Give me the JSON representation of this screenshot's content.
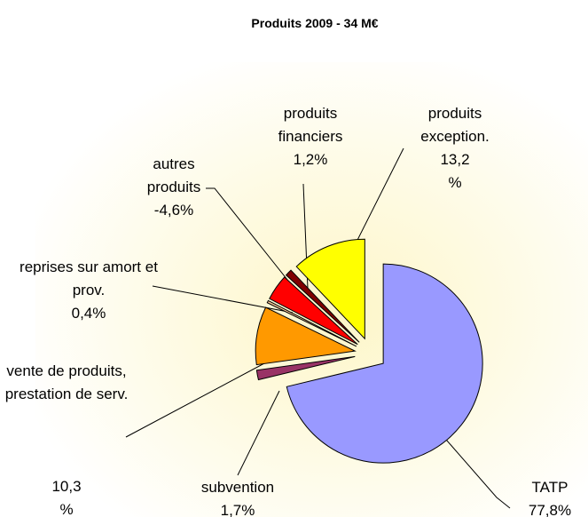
{
  "chart_data": {
    "type": "pie",
    "title": "Produits 2009 -  34 M€",
    "categories": [
      "TATP",
      "subvention",
      "vente de produits, prestation de serv.",
      "reprises sur amort et prov.",
      "autres produits",
      "produits financiers",
      "produits exception."
    ],
    "values": [
      77.8,
      1.7,
      10.3,
      0.4,
      -4.6,
      1.2,
      13.2
    ],
    "value_labels": [
      "77,8%",
      "1,7%",
      "10,3 %",
      "0,4%",
      "-4,6%",
      "1,2%",
      "13,2 %"
    ],
    "colors": [
      "#9999ff",
      "#993366",
      "#ff9900",
      "#ffcc99",
      "#ff0000",
      "#800000",
      "#ffff00"
    ]
  }
}
